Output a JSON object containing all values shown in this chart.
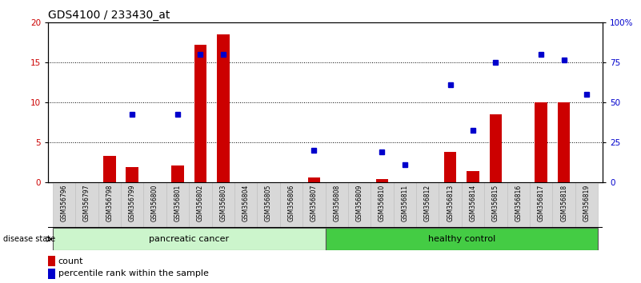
{
  "title": "GDS4100 / 233430_at",
  "samples": [
    "GSM356796",
    "GSM356797",
    "GSM356798",
    "GSM356799",
    "GSM356800",
    "GSM356801",
    "GSM356802",
    "GSM356803",
    "GSM356804",
    "GSM356805",
    "GSM356806",
    "GSM356807",
    "GSM356808",
    "GSM356809",
    "GSM356810",
    "GSM356811",
    "GSM356812",
    "GSM356813",
    "GSM356814",
    "GSM356815",
    "GSM356816",
    "GSM356817",
    "GSM356818",
    "GSM356819"
  ],
  "counts": [
    0,
    0,
    3.3,
    1.9,
    0,
    2.1,
    17.2,
    18.5,
    0,
    0,
    0,
    0.6,
    0,
    0,
    0.4,
    0,
    0,
    3.8,
    1.4,
    8.5,
    0,
    10.0,
    10.0,
    0
  ],
  "percentile_left_scale": [
    null,
    null,
    null,
    8.5,
    null,
    8.5,
    16.0,
    16.0,
    null,
    null,
    null,
    4.0,
    null,
    null,
    3.8,
    2.2,
    null,
    12.2,
    6.5,
    15.0,
    null,
    16.0,
    15.3,
    11.0
  ],
  "left_ylim": [
    0,
    20
  ],
  "right_ylim": [
    0,
    100
  ],
  "left_yticks": [
    0,
    5,
    10,
    15,
    20
  ],
  "right_yticks": [
    0,
    25,
    50,
    75,
    100
  ],
  "right_yticklabels": [
    "0",
    "25",
    "50",
    "75",
    "100%"
  ],
  "groups": [
    {
      "label": "pancreatic cancer",
      "start": 0,
      "end": 11,
      "color": "#ccf5cc"
    },
    {
      "label": "healthy control",
      "start": 12,
      "end": 23,
      "color": "#44cc44"
    }
  ],
  "disease_state_label": "disease state",
  "bar_color": "#cc0000",
  "dot_color": "#0000cc",
  "legend_count_label": "count",
  "legend_percentile_label": "percentile rank within the sample",
  "title_fontsize": 10,
  "tick_fontsize": 7.5,
  "label_fontsize": 8,
  "gridline_ticks": [
    5,
    10,
    15
  ]
}
